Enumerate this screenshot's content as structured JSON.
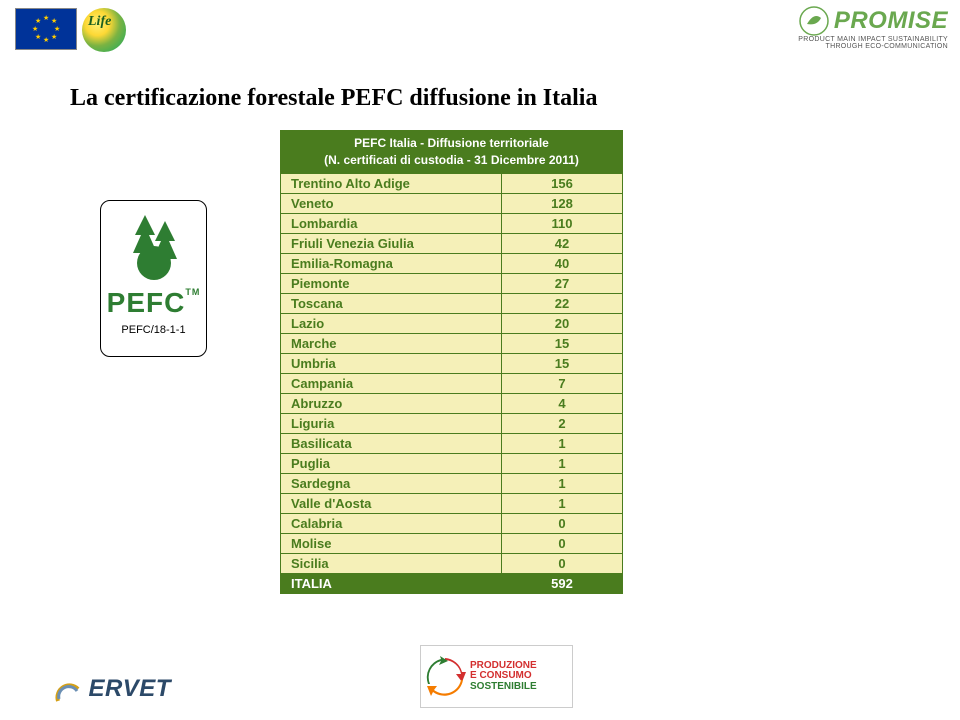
{
  "page": {
    "title": "La certificazione forestale PEFC diffusione in Italia"
  },
  "pefcBadge": {
    "label": "PEFC",
    "tm": "TM",
    "code": "PEFC/18-1-1"
  },
  "table": {
    "headerLine1": "PEFC Italia - Diffusione territoriale",
    "headerLine2": "(N. certificati di custodia - 31 Dicembre 2011)",
    "rows": [
      {
        "region": "Trentino Alto Adige",
        "value": "156"
      },
      {
        "region": "Veneto",
        "value": "128"
      },
      {
        "region": "Lombardia",
        "value": "110"
      },
      {
        "region": "Friuli Venezia Giulia",
        "value": "42"
      },
      {
        "region": "Emilia-Romagna",
        "value": "40"
      },
      {
        "region": "Piemonte",
        "value": "27"
      },
      {
        "region": "Toscana",
        "value": "22"
      },
      {
        "region": "Lazio",
        "value": "20"
      },
      {
        "region": "Marche",
        "value": "15"
      },
      {
        "region": "Umbria",
        "value": "15"
      },
      {
        "region": "Campania",
        "value": "7"
      },
      {
        "region": "Abruzzo",
        "value": "4"
      },
      {
        "region": "Liguria",
        "value": "2"
      },
      {
        "region": "Basilicata",
        "value": "1"
      },
      {
        "region": "Puglia",
        "value": "1"
      },
      {
        "region": "Sardegna",
        "value": "1"
      },
      {
        "region": "Valle d'Aosta",
        "value": "1"
      },
      {
        "region": "Calabria",
        "value": "0"
      },
      {
        "region": "Molise",
        "value": "0"
      },
      {
        "region": "Sicilia",
        "value": "0"
      }
    ],
    "totalLabel": "ITALIA",
    "totalValue": "592"
  },
  "promise": {
    "name": "PROMISE",
    "sub1": "PRODUCT MAIN IMPACT SUSTAINABILITY",
    "sub2": "THROUGH ECO-COMMUNICATION"
  },
  "ervet": {
    "name": "ERVET"
  },
  "prod": {
    "line1": "PRODUZIONE",
    "line2": "E CONSUMO",
    "line3": "SOSTENIBILE"
  },
  "life": {
    "text": "Life"
  }
}
